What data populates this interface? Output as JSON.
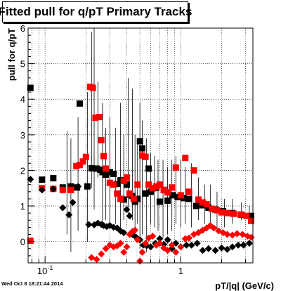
{
  "chart_data": {
    "type": "scatter",
    "title": "Fitted pull for q/pT  Primary Tracks",
    "xlabel": "pT/|q| (GeV/c)",
    "ylabel": "pull for q/pT",
    "xscale": "log",
    "xlim": [
      0.075,
      3.4
    ],
    "ylim": [
      -0.6,
      6.0
    ],
    "x_tick_labels": [
      {
        "value": 0.1,
        "label": "10",
        "sup": "-1"
      },
      {
        "value": 1,
        "label": "1",
        "sup": ""
      }
    ],
    "y_ticks": [
      0,
      1,
      2,
      3,
      4,
      5,
      6
    ],
    "grid": true,
    "colors": {
      "black_series": "#000000",
      "red_series": "#ff0000"
    },
    "series": [
      {
        "marker": "square",
        "color": "#000000",
        "points": [
          [
            0.078,
            4.32,
            0.0
          ],
          [
            0.095,
            1.74,
            0.0
          ],
          [
            0.115,
            1.78,
            0.0
          ],
          [
            0.135,
            1.52,
            0.0
          ],
          [
            0.155,
            1.55,
            0.0
          ],
          [
            0.172,
            1.52,
            0.0
          ],
          [
            0.18,
            3.88,
            0.0
          ],
          [
            0.205,
            1.55,
            0.0
          ],
          [
            0.22,
            2.06,
            0.0
          ],
          [
            0.24,
            2.05,
            0.0
          ],
          [
            0.255,
            2.02,
            0.0
          ],
          [
            0.265,
            1.95,
            0.0
          ],
          [
            0.28,
            1.88,
            0.0
          ],
          [
            0.3,
            1.95,
            0.0
          ],
          [
            0.32,
            1.9,
            0.0
          ],
          [
            0.34,
            1.62,
            0.0
          ],
          [
            0.36,
            1.72,
            0.0
          ],
          [
            0.38,
            1.18,
            0.0
          ],
          [
            0.4,
            1.6,
            0.0
          ],
          [
            0.42,
            1.32,
            0.0
          ],
          [
            0.44,
            1.28,
            0.0
          ],
          [
            0.46,
            1.12,
            0.0
          ],
          [
            0.48,
            1.2,
            0.0
          ],
          [
            0.5,
            2.82,
            0.0
          ],
          [
            0.52,
            2.62,
            0.0
          ],
          [
            0.55,
            1.35,
            0.0
          ],
          [
            0.58,
            2.05,
            0.0
          ],
          [
            0.6,
            1.4,
            0.0
          ],
          [
            0.63,
            1.5,
            0.0
          ],
          [
            0.66,
            1.52,
            0.0
          ],
          [
            0.7,
            1.12,
            0.0
          ],
          [
            0.75,
            1.45,
            0.0
          ],
          [
            0.8,
            1.15,
            0.0
          ],
          [
            0.87,
            1.3,
            0.0
          ],
          [
            0.95,
            1.25,
            0.0
          ],
          [
            1.05,
            1.22,
            0.0
          ],
          [
            1.15,
            1.2,
            0.0
          ],
          [
            1.3,
            1.0,
            0.0
          ],
          [
            1.45,
            1.02,
            0.0
          ],
          [
            1.6,
            0.95,
            0.0
          ],
          [
            1.8,
            0.9,
            0.0
          ],
          [
            2.05,
            0.85,
            0.0
          ],
          [
            2.4,
            0.8,
            0.0
          ],
          [
            2.8,
            0.75,
            0.0
          ],
          [
            3.3,
            0.72,
            0.0
          ]
        ]
      },
      {
        "marker": "square",
        "color": "#ff0000",
        "points": [
          [
            0.078,
            0.02,
            0.0
          ],
          [
            0.095,
            1.5,
            0.0
          ],
          [
            0.115,
            1.48,
            0.0
          ],
          [
            0.135,
            1.45,
            0.0
          ],
          [
            0.155,
            1.45,
            0.0
          ],
          [
            0.17,
            2.12,
            0.0
          ],
          [
            0.18,
            2.15,
            0.0
          ],
          [
            0.19,
            2.25,
            0.0
          ],
          [
            0.2,
            2.38,
            0.0
          ],
          [
            0.215,
            4.35,
            0.0
          ],
          [
            0.225,
            4.32,
            0.0
          ],
          [
            0.235,
            3.48,
            0.0
          ],
          [
            0.25,
            3.5,
            0.0
          ],
          [
            0.26,
            2.85,
            0.0
          ],
          [
            0.27,
            2.4,
            0.0
          ],
          [
            0.28,
            2.05,
            0.0
          ],
          [
            0.3,
            1.65,
            0.0
          ],
          [
            0.32,
            1.6,
            0.0
          ],
          [
            0.34,
            1.35,
            0.0
          ],
          [
            0.36,
            1.2,
            0.0
          ],
          [
            0.38,
            1.7,
            0.0
          ],
          [
            0.4,
            1.8,
            0.0
          ],
          [
            0.42,
            1.35,
            0.0
          ],
          [
            0.45,
            1.2,
            0.0
          ],
          [
            0.48,
            1.6,
            0.0
          ],
          [
            0.52,
            2.42,
            0.0
          ],
          [
            0.55,
            2.38,
            0.0
          ],
          [
            0.58,
            1.6,
            0.0
          ],
          [
            0.62,
            1.5,
            0.0
          ],
          [
            0.66,
            1.55,
            0.0
          ],
          [
            0.7,
            1.6,
            0.0
          ],
          [
            0.75,
            1.45,
            0.0
          ],
          [
            0.8,
            1.38,
            0.0
          ],
          [
            0.86,
            1.52,
            0.0
          ],
          [
            0.92,
            2.08,
            0.0
          ],
          [
            1.0,
            1.3,
            0.0
          ],
          [
            1.08,
            2.35,
            0.0
          ],
          [
            1.15,
            1.4,
            0.0
          ],
          [
            1.25,
            2.0,
            0.0
          ],
          [
            1.35,
            1.18,
            0.0
          ],
          [
            1.45,
            1.1,
            0.0
          ],
          [
            1.55,
            1.05,
            0.0
          ],
          [
            1.7,
            0.92,
            0.0
          ],
          [
            1.85,
            0.88,
            0.0
          ],
          [
            2.0,
            0.82,
            0.0
          ],
          [
            2.2,
            0.8,
            0.0
          ],
          [
            2.45,
            0.78,
            0.0
          ],
          [
            2.75,
            0.76,
            0.0
          ],
          [
            3.05,
            0.72,
            0.0
          ],
          [
            3.3,
            0.58,
            0.0
          ]
        ]
      },
      {
        "marker": "diamond",
        "color": "#000000",
        "points": [
          [
            0.078,
            1.75,
            0.0
          ],
          [
            0.095,
            1.45,
            0.0
          ],
          [
            0.115,
            1.48,
            0.0
          ],
          [
            0.135,
            0.95,
            0.0
          ],
          [
            0.15,
            0.75,
            0.0
          ],
          [
            0.16,
            1.1,
            0.0
          ],
          [
            0.175,
            1.55,
            0.0
          ],
          [
            0.21,
            0.48,
            0.0
          ],
          [
            0.23,
            0.47,
            0.0
          ],
          [
            0.245,
            0.52,
            0.0
          ],
          [
            0.26,
            0.48,
            0.0
          ],
          [
            0.27,
            0.45,
            0.0
          ],
          [
            0.285,
            0.42,
            0.0
          ],
          [
            0.3,
            0.45,
            0.0
          ],
          [
            0.32,
            0.4,
            0.0
          ],
          [
            0.34,
            0.38,
            0.0
          ],
          [
            0.36,
            0.3,
            0.0
          ],
          [
            0.38,
            0.25,
            0.0
          ],
          [
            0.4,
            0.9,
            0.0
          ],
          [
            0.42,
            0.72,
            0.0
          ],
          [
            0.44,
            0.2,
            0.0
          ],
          [
            0.47,
            0.12,
            0.0
          ],
          [
            0.5,
            0.05,
            0.0
          ],
          [
            0.53,
            -0.1,
            0.0
          ],
          [
            0.56,
            -0.12,
            0.0
          ],
          [
            0.6,
            -0.15,
            0.0
          ],
          [
            0.65,
            -0.05,
            0.0
          ],
          [
            0.7,
            0.08,
            0.0
          ],
          [
            0.75,
            -0.08,
            0.0
          ],
          [
            0.8,
            0.05,
            0.0
          ],
          [
            0.86,
            -0.2,
            0.0
          ],
          [
            0.92,
            -0.05,
            0.0
          ],
          [
            1.0,
            -0.15,
            0.0
          ],
          [
            1.1,
            -0.1,
            0.0
          ],
          [
            1.2,
            -0.1,
            0.0
          ],
          [
            1.32,
            -0.05,
            0.0
          ],
          [
            1.45,
            -0.25,
            0.0
          ],
          [
            1.6,
            -0.2,
            0.0
          ],
          [
            1.8,
            -0.25,
            0.0
          ],
          [
            2.0,
            -0.18,
            0.0
          ],
          [
            2.2,
            -0.22,
            0.0
          ],
          [
            2.4,
            -0.15,
            0.0
          ],
          [
            2.65,
            -0.1,
            0.0
          ],
          [
            2.9,
            -0.1,
            0.0
          ],
          [
            3.2,
            -0.05,
            0.0
          ]
        ]
      },
      {
        "marker": "diamond",
        "color": "#ff0000",
        "points": [
          [
            0.22,
            -0.45,
            0.0
          ],
          [
            0.24,
            -0.5,
            0.0
          ],
          [
            0.26,
            -0.35,
            0.0
          ],
          [
            0.28,
            -0.2,
            0.0
          ],
          [
            0.3,
            -0.1,
            0.0
          ],
          [
            0.32,
            -0.15,
            0.0
          ],
          [
            0.34,
            -0.12,
            0.0
          ],
          [
            0.36,
            -0.05,
            0.0
          ],
          [
            0.38,
            -0.3,
            0.0
          ],
          [
            0.4,
            -0.15,
            0.0
          ],
          [
            0.42,
            0.2,
            0.0
          ],
          [
            0.44,
            0.28,
            0.0
          ],
          [
            0.46,
            0.32,
            0.0
          ],
          [
            0.48,
            0.05,
            0.0
          ],
          [
            0.5,
            -0.55,
            0.0
          ],
          [
            0.52,
            -0.3,
            0.0
          ],
          [
            0.55,
            -0.05,
            0.0
          ],
          [
            0.58,
            0.1,
            0.0
          ],
          [
            0.62,
            0.15,
            0.0
          ],
          [
            0.66,
            -0.1,
            0.0
          ],
          [
            0.7,
            -0.05,
            0.0
          ],
          [
            0.75,
            -0.18,
            0.0
          ],
          [
            0.8,
            -0.25,
            0.0
          ],
          [
            0.86,
            -0.1,
            0.0
          ],
          [
            0.92,
            -0.3,
            0.0
          ],
          [
            1.0,
            -0.15,
            0.0
          ],
          [
            1.08,
            0.08,
            0.0
          ],
          [
            1.15,
            0.1,
            0.0
          ],
          [
            1.25,
            0.2,
            0.0
          ],
          [
            1.35,
            0.25,
            0.0
          ],
          [
            1.45,
            0.32,
            0.0
          ],
          [
            1.55,
            0.38,
            0.0
          ],
          [
            1.65,
            0.45,
            0.0
          ],
          [
            1.75,
            0.38,
            0.0
          ],
          [
            1.9,
            0.3,
            0.0
          ],
          [
            2.05,
            0.25,
            0.0
          ],
          [
            2.2,
            0.2,
            0.0
          ],
          [
            2.4,
            0.18,
            0.0
          ],
          [
            2.6,
            0.22,
            0.0
          ],
          [
            2.85,
            0.2,
            0.0
          ],
          [
            3.1,
            0.15,
            0.0
          ],
          [
            3.3,
            0.12,
            0.0
          ]
        ]
      }
    ],
    "error_bars": [
      [
        0.145,
        0.2,
        3.1
      ],
      [
        0.155,
        -0.3,
        2.9
      ],
      [
        0.175,
        0.3,
        3.5
      ],
      [
        0.205,
        0.0,
        4.2
      ],
      [
        0.22,
        1.5,
        5.9
      ],
      [
        0.23,
        0.9,
        6.0
      ],
      [
        0.245,
        1.8,
        4.5
      ],
      [
        0.265,
        0.5,
        3.9
      ],
      [
        0.28,
        0.6,
        3.2
      ],
      [
        0.3,
        0.4,
        3.5
      ],
      [
        0.33,
        0.5,
        3.2
      ],
      [
        0.36,
        0.2,
        3.9
      ],
      [
        0.38,
        0.6,
        3.0
      ],
      [
        0.41,
        0.7,
        4.6
      ],
      [
        0.44,
        0.6,
        4.3
      ],
      [
        0.46,
        0.4,
        3.0
      ],
      [
        0.48,
        0.5,
        2.9
      ],
      [
        0.5,
        -0.2,
        3.9
      ],
      [
        0.52,
        0.2,
        3.4
      ],
      [
        0.56,
        -0.3,
        2.9
      ],
      [
        0.6,
        0.5,
        2.5
      ],
      [
        0.64,
        0.4,
        2.4
      ],
      [
        0.68,
        0.3,
        2.3
      ],
      [
        0.74,
        0.1,
        2.3
      ],
      [
        0.8,
        0.2,
        2.1
      ],
      [
        0.86,
        0.3,
        2.3
      ],
      [
        0.92,
        0.5,
        2.4
      ],
      [
        1.0,
        0.4,
        2.3
      ],
      [
        1.08,
        0.5,
        2.1
      ],
      [
        1.2,
        0.4,
        2.2
      ],
      [
        1.35,
        0.6,
        1.8
      ],
      [
        1.5,
        0.5,
        1.6
      ],
      [
        1.65,
        0.4,
        1.6
      ],
      [
        1.85,
        0.3,
        1.4
      ],
      [
        2.1,
        0.4,
        1.2
      ],
      [
        2.4,
        0.5,
        1.2
      ],
      [
        2.8,
        0.6,
        1.1
      ],
      [
        3.2,
        0.5,
        1.0
      ]
    ]
  },
  "footer": {
    "timestamp": "Wed Oct  8 18:21:44 2014"
  }
}
